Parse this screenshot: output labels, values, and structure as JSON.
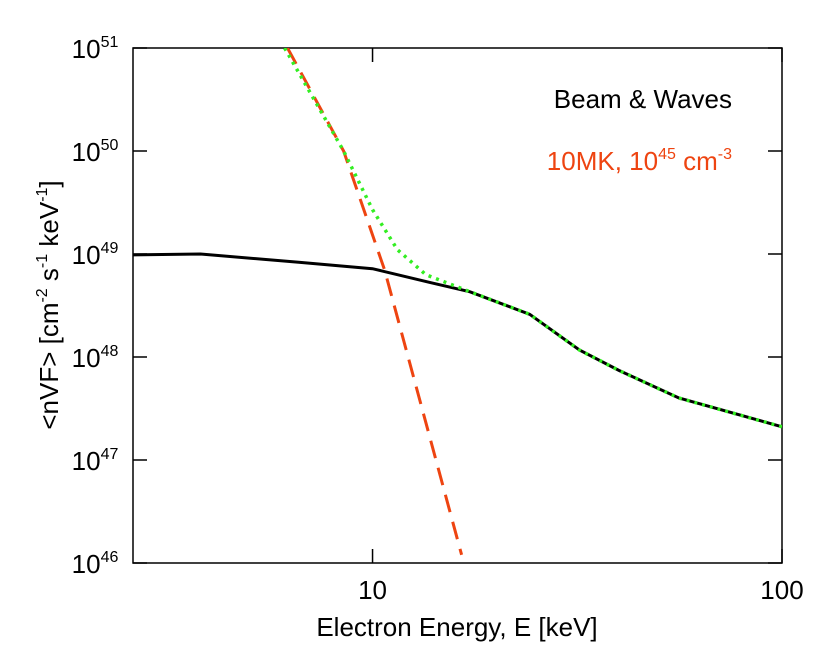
{
  "chart_data": {
    "type": "line",
    "x_label": "Electron Energy, E [keV]",
    "y_label": [
      "<nVF> [cm",
      "-2",
      " s",
      "-1",
      " keV",
      "-1",
      "]"
    ],
    "log_x": true,
    "log_y": true,
    "xlim": [
      2.6,
      100
    ],
    "ylim": [
      1e+46,
      1e+51
    ],
    "xticks": [
      10,
      100
    ],
    "yticks": [
      {
        "value": 1e+46,
        "label": [
          "10",
          "46"
        ]
      },
      {
        "value": 1e+47,
        "label": [
          "10",
          "47"
        ]
      },
      {
        "value": 1e+48,
        "label": [
          "10",
          "48"
        ]
      },
      {
        "value": 1e+49,
        "label": [
          "10",
          "49"
        ]
      },
      {
        "value": 1e+50,
        "label": [
          "10",
          "50"
        ]
      },
      {
        "value": 1e+51,
        "label": [
          "10",
          "51"
        ]
      }
    ],
    "annotations": [
      {
        "text": [
          "Beam & Waves"
        ],
        "color": "#000000"
      },
      {
        "text": [
          "10MK, 10",
          "45",
          " cm",
          "-3"
        ],
        "color": "#ee4411"
      }
    ],
    "series": [
      {
        "color": "#000000",
        "dash": "solid",
        "x": [
          2.6,
          3.8,
          6.6,
          10,
          13.8,
          17.3,
          24.2,
          32,
          40,
          56,
          100
        ],
        "values": [
          9.8e+48,
          1e+49,
          8.3e+48,
          7.2e+48,
          5.3e+48,
          4.3e+48,
          2.6e+48,
          1.17e+48,
          7.4e+47,
          4e+47,
          2.1e+47
        ]
      },
      {
        "color": "#ee4411",
        "dash": "dashed",
        "x": [
          6.2,
          8.5,
          10.7,
          16.5
        ],
        "values": [
          1e+51,
          1e+50,
          7e+48,
          1.2e+46
        ]
      },
      {
        "color": "#33ee22",
        "dash": "dotted",
        "x": [
          6.1,
          8.5,
          10,
          11.5,
          13.5,
          17.3,
          24.2,
          32,
          40,
          56,
          100
        ],
        "values": [
          1e+51,
          1e+50,
          2.7e+49,
          1.1e+49,
          6.3e+48,
          4.3e+48,
          2.6e+48,
          1.17e+48,
          7.4e+47,
          4e+47,
          2.1e+47
        ]
      }
    ]
  }
}
